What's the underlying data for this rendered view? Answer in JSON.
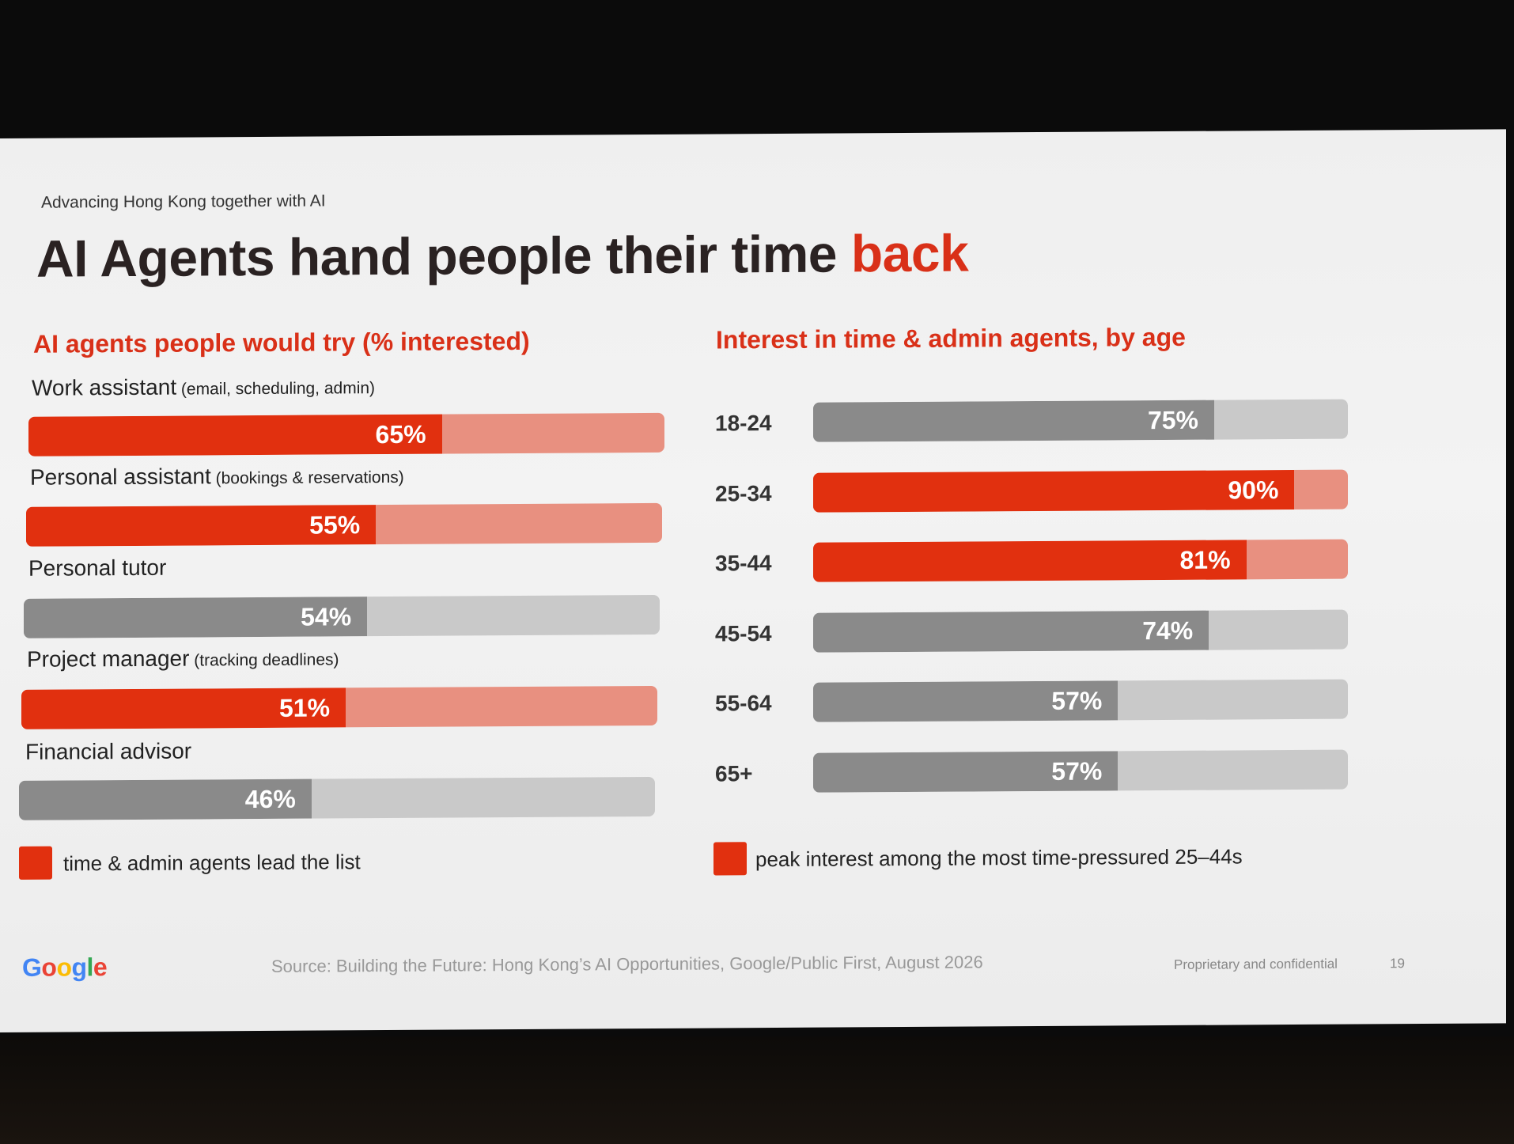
{
  "slide": {
    "eyebrow": "Advancing Hong Kong together with AI",
    "title_main": "AI Agents hand people their time ",
    "title_accent": "back",
    "source": "Source: Building the Future: Hong Kong’s AI Opportunities, Google/Public First, August 2026",
    "confidential": "Proprietary and confidential",
    "page_number": "19",
    "logo_letters": [
      "G",
      "o",
      "o",
      "g",
      "l",
      "e"
    ]
  },
  "colors": {
    "accent": "#e1300f",
    "accent_track": "#e89080",
    "neutral": "#8a8a8a",
    "neutral_track": "#c9c9c9"
  },
  "chart_data": [
    {
      "type": "bar",
      "orientation": "horizontal",
      "title": "AI agents people would try (% interested)",
      "categories": [
        "Work assistant",
        "Personal assistant",
        "Personal tutor",
        "Project manager",
        "Financial advisor"
      ],
      "category_notes": [
        "(email, scheduling, admin)",
        "(bookings & reservations)",
        "",
        "(tracking deadlines)",
        ""
      ],
      "values": [
        65,
        55,
        54,
        51,
        46
      ],
      "value_labels": [
        "65%",
        "55%",
        "54%",
        "51%",
        "46%"
      ],
      "highlighted": [
        true,
        true,
        false,
        true,
        false
      ],
      "xlim": [
        0,
        100
      ],
      "legend": {
        "label": "time & admin agents lead the list",
        "placement": "bottom-left"
      }
    },
    {
      "type": "bar",
      "orientation": "horizontal",
      "title": "Interest in time & admin agents, by age",
      "categories": [
        "18-24",
        "25-34",
        "35-44",
        "45-54",
        "55-64",
        "65+"
      ],
      "values": [
        75,
        90,
        81,
        74,
        57,
        57
      ],
      "value_labels": [
        "75%",
        "90%",
        "81%",
        "74%",
        "57%",
        "57%"
      ],
      "highlighted": [
        false,
        true,
        true,
        false,
        false,
        false
      ],
      "xlim": [
        0,
        100
      ],
      "legend": {
        "label": "peak interest among the most time-pressured 25–44s",
        "placement": "bottom"
      }
    }
  ]
}
